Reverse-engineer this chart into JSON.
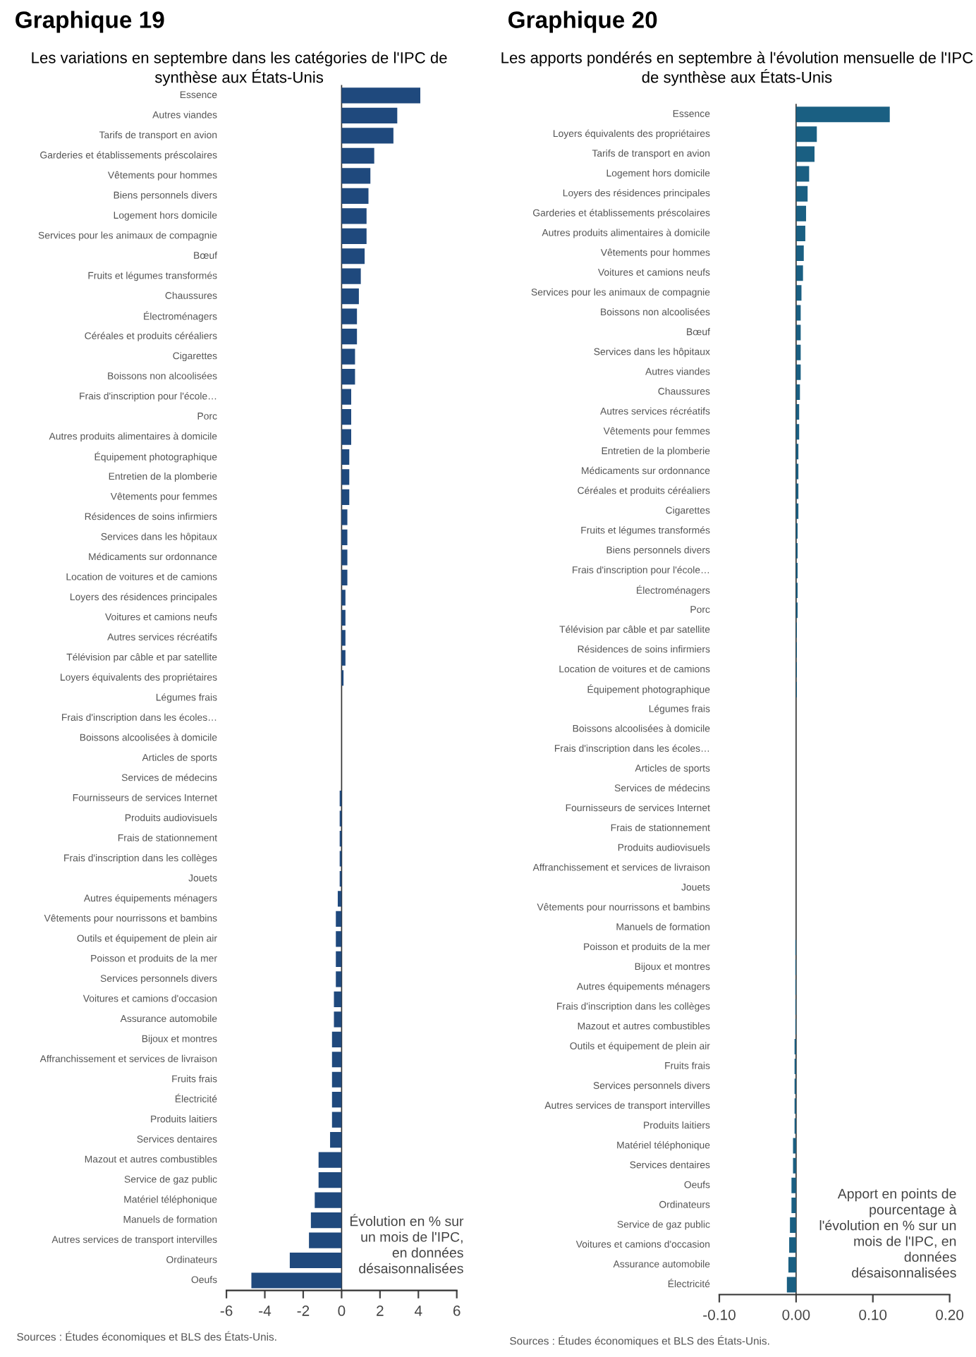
{
  "chart_data": [
    {
      "type": "bar",
      "orientation": "horizontal",
      "title": "Graphique 19",
      "subtitle": "Les variations en septembre dans les catégories de l'IPC de synthèse aux États-Unis",
      "color": "#1f497d",
      "categories": [
        "Essence",
        "Autres viandes",
        "Tarifs de transport en avion",
        "Garderies et établissements préscolaires",
        "Vêtements pour hommes",
        "Biens personnels divers",
        "Logement hors domicile",
        "Services pour les animaux de compagnie",
        "Bœuf",
        "Fruits et légumes transformés",
        "Chaussures",
        "Électroménagers",
        "Céréales et produits céréaliers",
        "Cigarettes",
        "Boissons non alcoolisées",
        "Frais d'inscription pour l'école…",
        "Porc",
        "Autres produits alimentaires à domicile",
        "Équipement photographique",
        "Entretien de la plomberie",
        "Vêtements pour femmes",
        "Résidences de soins infirmiers",
        "Services dans les hôpitaux",
        "Médicaments sur ordonnance",
        "Location de voitures et de camions",
        "Loyers des résidences principales",
        "Voitures et camions neufs",
        "Autres services récréatifs",
        "Télévision par câble et par satellite",
        "Loyers équivalents des propriétaires",
        "Légumes frais",
        "Frais d'inscription dans les écoles…",
        "Boissons alcoolisées à domicile",
        "Articles de sports",
        "Services de médecins",
        "Fournisseurs de services Internet",
        "Produits audiovisuels",
        "Frais de stationnement",
        "Frais d'inscription dans les collèges",
        "Jouets",
        "Autres équipements ménagers",
        "Vêtements pour nourrissons et bambins",
        "Outils et équipement de plein air",
        "Poisson et produits de la mer",
        "Services personnels divers",
        "Voitures et camions d'occasion",
        "Assurance automobile",
        "Bijoux et montres",
        "Affranchissement et services de livraison",
        "Fruits frais",
        "Électricité",
        "Produits laitiers",
        "Services dentaires",
        "Mazout et autres combustibles",
        "Service de gaz public",
        "Matériel téléphonique",
        "Manuels de formation",
        "Autres services de transport intervilles",
        "Ordinateurs",
        "Oeufs"
      ],
      "values": [
        4.1,
        2.9,
        2.7,
        1.7,
        1.5,
        1.4,
        1.3,
        1.3,
        1.2,
        1.0,
        0.9,
        0.8,
        0.8,
        0.7,
        0.7,
        0.5,
        0.5,
        0.5,
        0.4,
        0.4,
        0.4,
        0.3,
        0.3,
        0.3,
        0.3,
        0.2,
        0.2,
        0.2,
        0.2,
        0.1,
        0.0,
        0.0,
        0.0,
        0.0,
        0.0,
        -0.1,
        -0.1,
        -0.1,
        -0.1,
        -0.1,
        -0.2,
        -0.3,
        -0.3,
        -0.3,
        -0.3,
        -0.4,
        -0.4,
        -0.5,
        -0.5,
        -0.5,
        -0.5,
        -0.5,
        -0.6,
        -1.2,
        -1.2,
        -1.4,
        -1.6,
        -1.7,
        -2.7,
        -4.7
      ],
      "xlim": [
        -6,
        6
      ],
      "xticks": [
        -6,
        -4,
        -2,
        0,
        2,
        4,
        6
      ],
      "annotations": [
        "Évolution en % sur\nun mois de l'IPC,\nen données\ndésaisonnalisées",
        "Sources : Études économiques et BLS des États-Unis."
      ]
    },
    {
      "type": "bar",
      "orientation": "horizontal",
      "title": "Graphique 20",
      "subtitle": "Les apports pondérés en septembre à l'évolution mensuelle de l'IPC de synthèse aux États-Unis",
      "color": "#1a5f82",
      "categories": [
        "Essence",
        "Loyers équivalents des propriétaires",
        "Tarifs de transport en avion",
        "Logement hors domicile",
        "Loyers des résidences principales",
        "Garderies et établissements préscolaires",
        "Autres produits alimentaires à domicile",
        "Vêtements pour hommes",
        "Voitures et camions neufs",
        "Services pour les animaux de compagnie",
        "Boissons non alcoolisées",
        "Bœuf",
        "Services dans les hôpitaux",
        "Autres viandes",
        "Chaussures",
        "Autres services récréatifs",
        "Vêtements pour femmes",
        "Entretien de la plomberie",
        "Médicaments sur ordonnance",
        "Céréales et produits céréaliers",
        "Cigarettes",
        "Fruits et légumes transformés",
        "Biens personnels divers",
        "Frais d'inscription pour l'école…",
        "Électroménagers",
        "Porc",
        "Télévision par câble et par satellite",
        "Résidences de soins infirmiers",
        "Location de voitures et de camions",
        "Équipement photographique",
        "Légumes frais",
        "Boissons alcoolisées à domicile",
        "Frais d'inscription dans les écoles…",
        "Articles de sports",
        "Services de médecins",
        "Fournisseurs de services Internet",
        "Frais de stationnement",
        "Produits audiovisuels",
        "Affranchissement et services de livraison",
        "Jouets",
        "Vêtements pour nourrissons et bambins",
        "Manuels de formation",
        "Poisson et produits de la mer",
        "Bijoux et montres",
        "Autres équipements ménagers",
        "Frais d'inscription dans les collèges",
        "Mazout et autres combustibles",
        "Outils et équipement de plein air",
        "Fruits frais",
        "Services personnels divers",
        "Autres services de transport intervilles",
        "Produits laitiers",
        "Matériel téléphonique",
        "Services dentaires",
        "Oeufs",
        "Ordinateurs",
        "Service de gaz public",
        "Voitures et camions d'occasion",
        "Assurance automobile",
        "Électricité"
      ],
      "values": [
        0.122,
        0.027,
        0.024,
        0.017,
        0.015,
        0.013,
        0.012,
        0.01,
        0.009,
        0.007,
        0.006,
        0.006,
        0.006,
        0.006,
        0.005,
        0.004,
        0.004,
        0.003,
        0.003,
        0.003,
        0.003,
        0.002,
        0.002,
        0.002,
        0.002,
        0.002,
        0.001,
        0.001,
        0.001,
        0.001,
        0.0,
        0.0,
        0.0,
        0.0,
        0.0,
        0.0,
        0.0,
        0.0,
        0.0,
        0.0,
        0.0,
        0.0,
        -0.001,
        -0.001,
        -0.001,
        -0.001,
        -0.001,
        -0.002,
        -0.002,
        -0.002,
        -0.002,
        -0.002,
        -0.004,
        -0.004,
        -0.006,
        -0.006,
        -0.008,
        -0.009,
        -0.01,
        -0.012
      ],
      "xlim": [
        -0.1,
        0.2
      ],
      "xticks": [
        {
          "value": -0.1,
          "label": "-0.10"
        },
        {
          "value": 0,
          "label": "0.00"
        },
        {
          "value": 0.1,
          "label": "0.10"
        },
        {
          "value": 0.2,
          "label": "0.20"
        }
      ],
      "annotations": [
        "Apport en points de\npourcentage à\nl'évolution en % sur un\nmois de l'IPC, en\ndonnées\ndésaisonnalisées",
        "Sources : Études économiques et BLS des États-Unis."
      ]
    }
  ]
}
